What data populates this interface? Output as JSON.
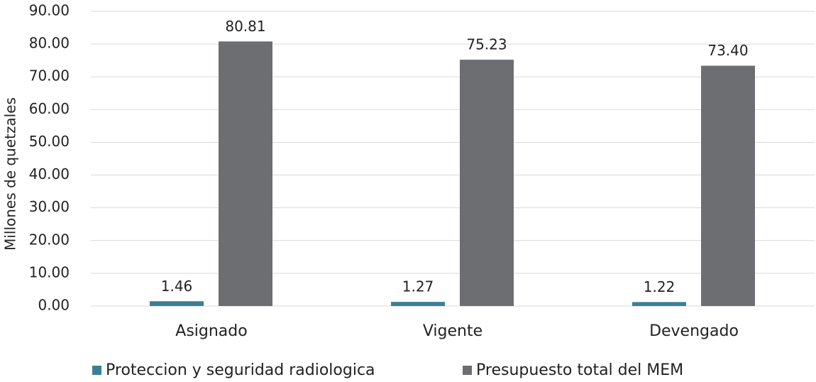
{
  "chart_data": {
    "type": "bar",
    "y_label": "Millones de quetzales",
    "categories": [
      "Asignado",
      "Vigente",
      "Devengado"
    ],
    "series": [
      {
        "name": "Proteccion y seguridad radiologica",
        "color": "#3a7f96",
        "values": [
          1.46,
          1.27,
          1.22
        ],
        "value_labels": [
          "1.46",
          "1.27",
          "1.22"
        ]
      },
      {
        "name": "Presupuesto total del MEM",
        "color": "#6d6e71",
        "values": [
          80.81,
          75.23,
          73.4
        ],
        "value_labels": [
          "80.81",
          "75.23",
          "73.40"
        ]
      }
    ],
    "ylim": [
      0,
      90
    ],
    "yticks": [
      {
        "value": 0,
        "label": "0.00"
      },
      {
        "value": 10,
        "label": "10.00"
      },
      {
        "value": 20,
        "label": "20.00"
      },
      {
        "value": 30,
        "label": "30.00"
      },
      {
        "value": 40,
        "label": "40.00"
      },
      {
        "value": 50,
        "label": "50.00"
      },
      {
        "value": 60,
        "label": "60.00"
      },
      {
        "value": 70,
        "label": "70.00"
      },
      {
        "value": 80,
        "label": "80.00"
      },
      {
        "value": 90,
        "label": "90.00"
      }
    ],
    "grid": true,
    "legend": "bottom"
  }
}
